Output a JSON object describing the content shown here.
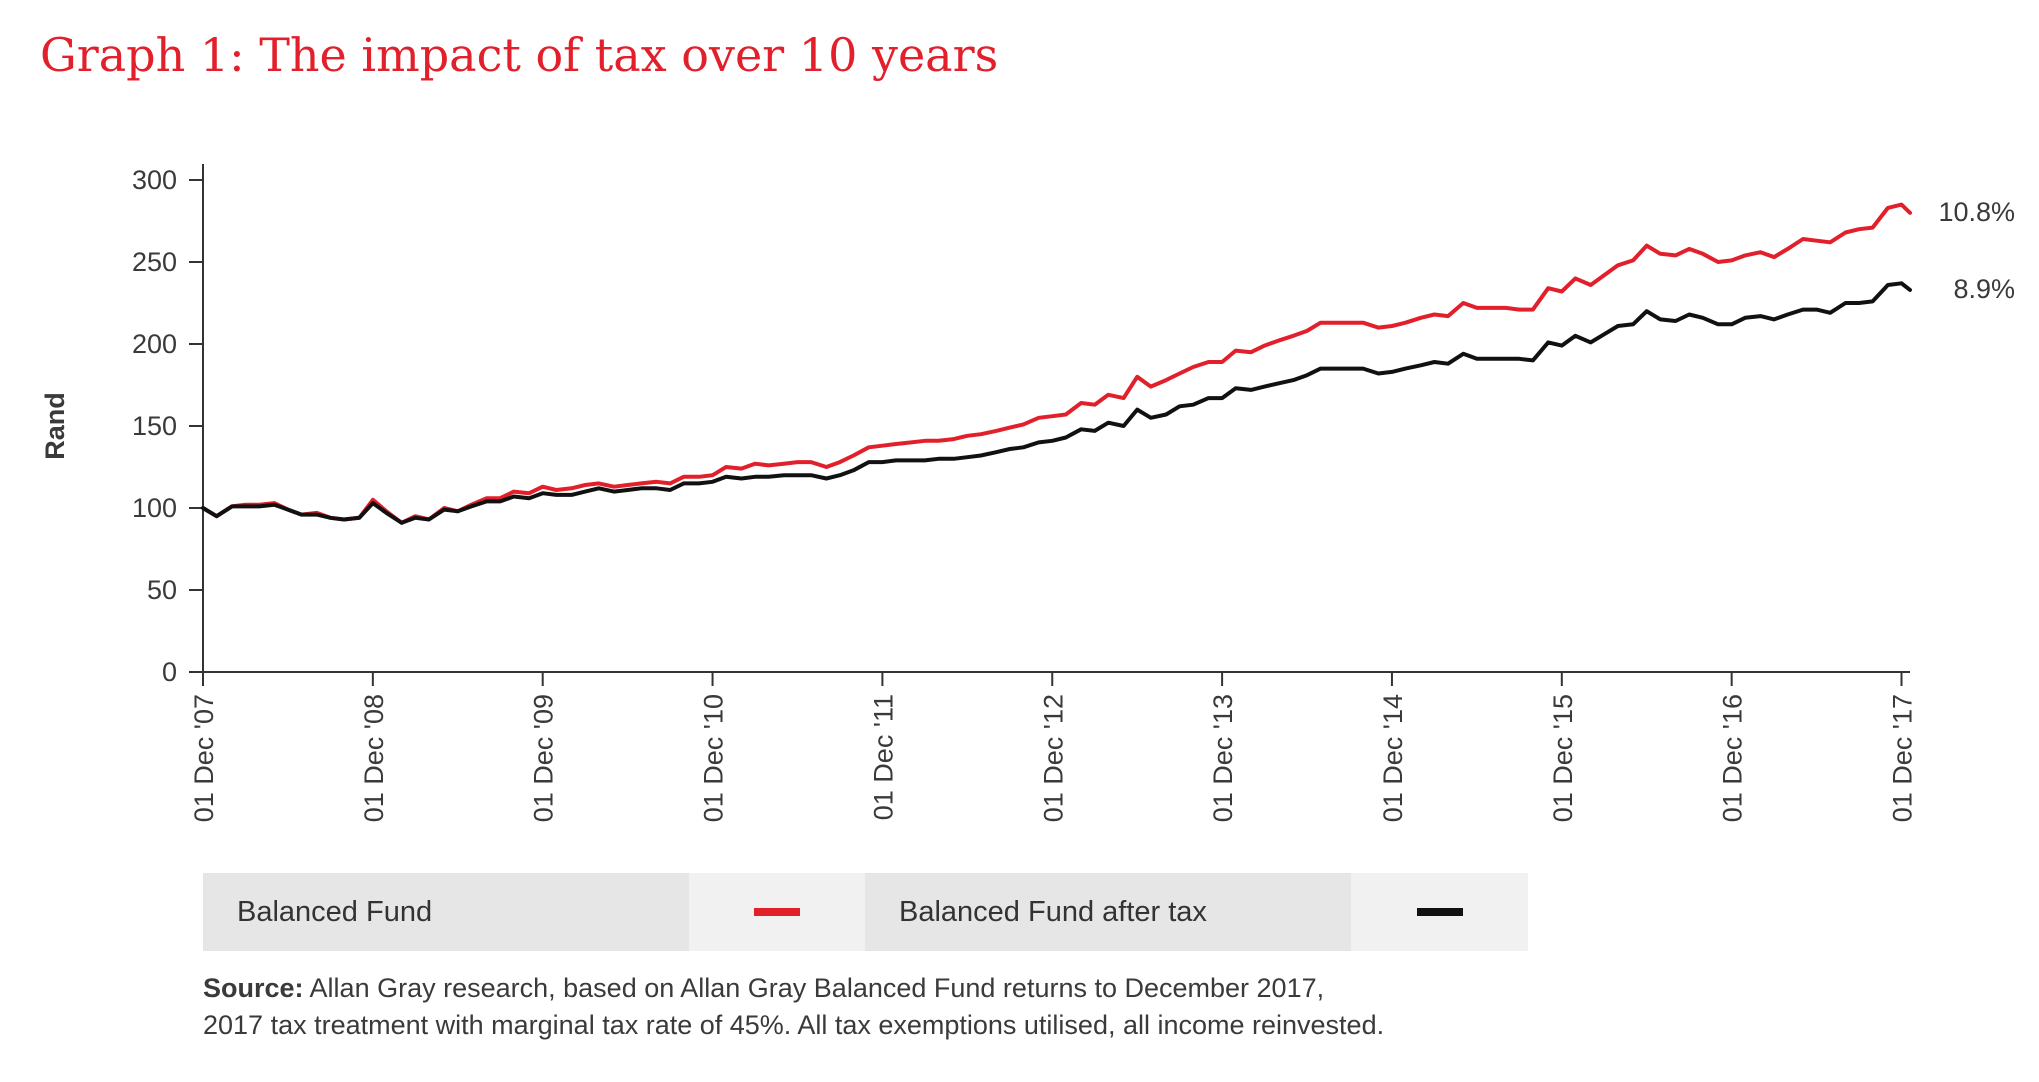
{
  "title": "Graph 1: The impact of tax over 10 years",
  "chart_data": {
    "type": "line",
    "title": "Graph 1: The impact of tax over 10 years",
    "xlabel": "",
    "ylabel": "Rand",
    "ylim": [
      0,
      300
    ],
    "yticks": [
      0,
      50,
      100,
      150,
      200,
      250,
      300
    ],
    "xlim": [
      0,
      10.05
    ],
    "xticks": [
      0,
      1,
      2,
      3,
      4,
      5,
      6,
      7,
      8,
      9,
      10
    ],
    "xtick_labels": [
      "01 Dec '07",
      "01 Dec '08",
      "01 Dec '09",
      "01 Dec '10",
      "01 Dec '11",
      "01 Dec '12",
      "01 Dec '13",
      "01 Dec '14",
      "01 Dec '15",
      "01 Dec '16",
      "01 Dec '17"
    ],
    "grid": false,
    "legend_position": "bottom",
    "series": [
      {
        "name": "Balanced Fund",
        "color": "#e2202b",
        "end_label": "10.8%",
        "x": [
          0,
          0.08,
          0.17,
          0.25,
          0.33,
          0.42,
          0.5,
          0.58,
          0.67,
          0.75,
          0.83,
          0.92,
          1.0,
          1.08,
          1.17,
          1.25,
          1.33,
          1.42,
          1.5,
          1.58,
          1.67,
          1.75,
          1.83,
          1.92,
          2.0,
          2.08,
          2.17,
          2.25,
          2.33,
          2.42,
          2.5,
          2.58,
          2.67,
          2.75,
          2.83,
          2.92,
          3.0,
          3.08,
          3.17,
          3.25,
          3.33,
          3.42,
          3.5,
          3.58,
          3.67,
          3.75,
          3.83,
          3.92,
          4.0,
          4.08,
          4.17,
          4.25,
          4.33,
          4.42,
          4.5,
          4.58,
          4.67,
          4.75,
          4.83,
          4.92,
          5.0,
          5.08,
          5.17,
          5.25,
          5.33,
          5.42,
          5.5,
          5.58,
          5.67,
          5.75,
          5.83,
          5.92,
          6.0,
          6.08,
          6.17,
          6.25,
          6.33,
          6.42,
          6.5,
          6.58,
          6.67,
          6.75,
          6.83,
          6.92,
          7.0,
          7.08,
          7.17,
          7.25,
          7.33,
          7.42,
          7.5,
          7.58,
          7.67,
          7.75,
          7.83,
          7.92,
          8.0,
          8.08,
          8.17,
          8.25,
          8.33,
          8.42,
          8.5,
          8.58,
          8.67,
          8.75,
          8.83,
          8.92,
          9.0,
          9.08,
          9.17,
          9.25,
          9.33,
          9.42,
          9.5,
          9.58,
          9.67,
          9.75,
          9.83,
          9.92,
          10.0,
          10.05
        ],
        "values": [
          100,
          95,
          101,
          102,
          102,
          103,
          99,
          96,
          97,
          94,
          93,
          94,
          105,
          98,
          91,
          95,
          93,
          100,
          98,
          102,
          106,
          106,
          110,
          109,
          113,
          111,
          112,
          114,
          115,
          113,
          114,
          115,
          116,
          115,
          119,
          119,
          120,
          125,
          124,
          127,
          126,
          127,
          128,
          128,
          125,
          128,
          132,
          137,
          138,
          139,
          140,
          141,
          141,
          142,
          144,
          145,
          147,
          149,
          151,
          155,
          156,
          157,
          164,
          163,
          169,
          167,
          180,
          174,
          178,
          182,
          186,
          189,
          189,
          196,
          195,
          199,
          202,
          205,
          208,
          213,
          213,
          213,
          213,
          210,
          211,
          213,
          216,
          218,
          217,
          225,
          222,
          222,
          222,
          221,
          221,
          234,
          232,
          240,
          236,
          242,
          248,
          251,
          260,
          255,
          254,
          258,
          255,
          250,
          251,
          254,
          256,
          253,
          258,
          264,
          263,
          262,
          268,
          270,
          271,
          283,
          285,
          280
        ]
      },
      {
        "name": "Balanced Fund after tax",
        "color": "#111111",
        "end_label": "8.9%",
        "x": [
          0,
          0.08,
          0.17,
          0.25,
          0.33,
          0.42,
          0.5,
          0.58,
          0.67,
          0.75,
          0.83,
          0.92,
          1.0,
          1.08,
          1.17,
          1.25,
          1.33,
          1.42,
          1.5,
          1.58,
          1.67,
          1.75,
          1.83,
          1.92,
          2.0,
          2.08,
          2.17,
          2.25,
          2.33,
          2.42,
          2.5,
          2.58,
          2.67,
          2.75,
          2.83,
          2.92,
          3.0,
          3.08,
          3.17,
          3.25,
          3.33,
          3.42,
          3.5,
          3.58,
          3.67,
          3.75,
          3.83,
          3.92,
          4.0,
          4.08,
          4.17,
          4.25,
          4.33,
          4.42,
          4.5,
          4.58,
          4.67,
          4.75,
          4.83,
          4.92,
          5.0,
          5.08,
          5.17,
          5.25,
          5.33,
          5.42,
          5.5,
          5.58,
          5.67,
          5.75,
          5.83,
          5.92,
          6.0,
          6.08,
          6.17,
          6.25,
          6.33,
          6.42,
          6.5,
          6.58,
          6.67,
          6.75,
          6.83,
          6.92,
          7.0,
          7.08,
          7.17,
          7.25,
          7.33,
          7.42,
          7.5,
          7.58,
          7.67,
          7.75,
          7.83,
          7.92,
          8.0,
          8.08,
          8.17,
          8.25,
          8.33,
          8.42,
          8.5,
          8.58,
          8.67,
          8.75,
          8.83,
          8.92,
          9.0,
          9.08,
          9.17,
          9.25,
          9.33,
          9.42,
          9.5,
          9.58,
          9.67,
          9.75,
          9.83,
          9.92,
          10.0,
          10.05
        ],
        "values": [
          100,
          95,
          101,
          101,
          101,
          102,
          99,
          96,
          96,
          94,
          93,
          94,
          103,
          97,
          91,
          94,
          93,
          99,
          98,
          101,
          104,
          104,
          107,
          106,
          109,
          108,
          108,
          110,
          112,
          110,
          111,
          112,
          112,
          111,
          115,
          115,
          116,
          119,
          118,
          119,
          119,
          120,
          120,
          120,
          118,
          120,
          123,
          128,
          128,
          129,
          129,
          129,
          130,
          130,
          131,
          132,
          134,
          136,
          137,
          140,
          141,
          143,
          148,
          147,
          152,
          150,
          160,
          155,
          157,
          162,
          163,
          167,
          167,
          173,
          172,
          174,
          176,
          178,
          181,
          185,
          185,
          185,
          185,
          182,
          183,
          185,
          187,
          189,
          188,
          194,
          191,
          191,
          191,
          191,
          190,
          201,
          199,
          205,
          201,
          206,
          211,
          212,
          220,
          215,
          214,
          218,
          216,
          212,
          212,
          216,
          217,
          215,
          218,
          221,
          221,
          219,
          225,
          225,
          226,
          236,
          237,
          233
        ]
      }
    ]
  },
  "legend": {
    "items": [
      {
        "label": "Balanced Fund",
        "color": "#e2202b"
      },
      {
        "label": "Balanced Fund after tax",
        "color": "#111111"
      }
    ]
  },
  "source": {
    "bold": "Source:",
    "line1": " Allan Gray research, based on Allan Gray Balanced Fund returns to December 2017,",
    "line2": "2017 tax treatment with marginal tax rate of 45%. All tax exemptions utilised, all income reinvested."
  }
}
